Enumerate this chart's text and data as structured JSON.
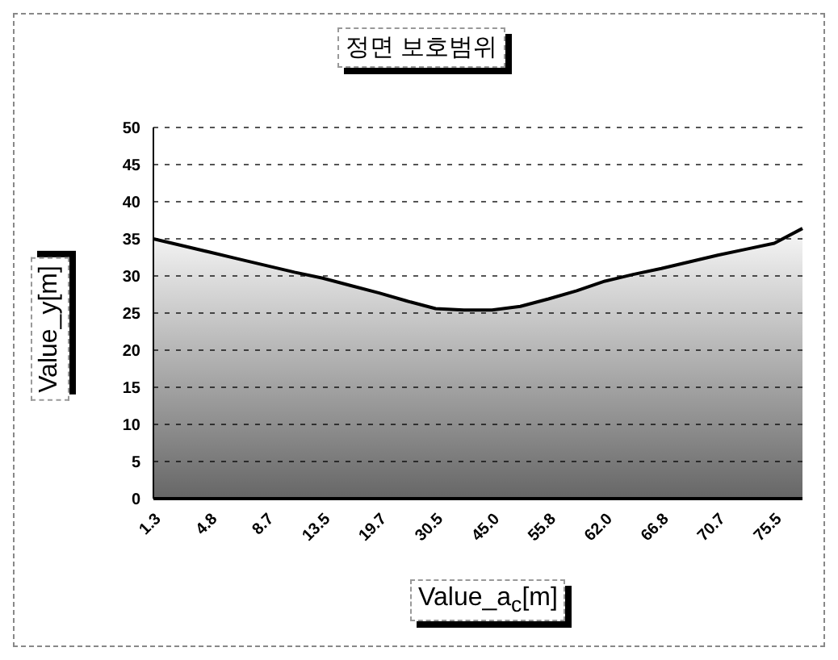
{
  "chart_data": {
    "type": "area",
    "title": "정면 보호범위",
    "xlabel": "Value_a$_{c}$[m]",
    "ylabel": "Value_y[m]",
    "categories": [
      "1.3",
      null,
      "4.8",
      null,
      "8.7",
      null,
      "13.5",
      null,
      "19.7",
      null,
      "30.5",
      null,
      "45.0",
      null,
      "55.8",
      null,
      "62.0",
      null,
      "66.8",
      null,
      "70.7",
      null,
      "75.5",
      null
    ],
    "series": [
      {
        "color": "#000000",
        "values": [
          35.0,
          34.1,
          33.2,
          32.3,
          31.4,
          30.5,
          29.7,
          28.7,
          27.7,
          26.6,
          25.6,
          25.4,
          25.4,
          25.9,
          26.9,
          28.0,
          29.3,
          30.2,
          31.0,
          31.9,
          32.8,
          33.6,
          34.4,
          36.4
        ]
      }
    ],
    "ylim": [
      0,
      50
    ],
    "yticks": [
      0,
      5,
      10,
      15,
      20,
      25,
      30,
      35,
      40,
      45,
      50
    ],
    "grid": "y"
  }
}
